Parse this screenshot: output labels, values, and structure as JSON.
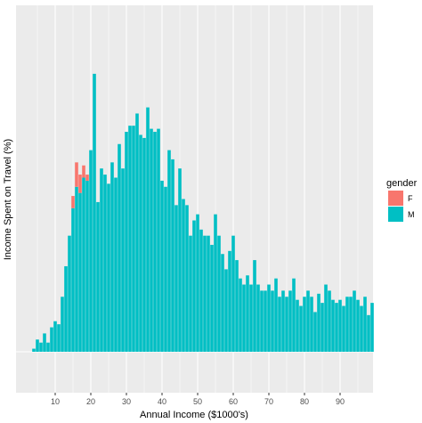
{
  "chart_data": {
    "type": "bar",
    "stacked": true,
    "xlabel": "Annual Income ($1000's)",
    "ylabel": "Income Spent on Travel (%)",
    "xlim": [
      0,
      99
    ],
    "ylim": [
      0,
      100
    ],
    "x_ticks": [
      10,
      20,
      30,
      40,
      50,
      60,
      70,
      80,
      90
    ],
    "y_ticks": [],
    "grid": true,
    "legend_position": "right",
    "legend": {
      "title": "gender",
      "entries": [
        {
          "label": "F",
          "color": "#F8766D"
        },
        {
          "label": "M",
          "color": "#00BFC4"
        }
      ]
    },
    "x": [
      1,
      2,
      3,
      4,
      5,
      6,
      7,
      8,
      9,
      10,
      11,
      12,
      13,
      14,
      15,
      16,
      17,
      18,
      19,
      20,
      21,
      22,
      23,
      24,
      25,
      26,
      27,
      28,
      29,
      30,
      31,
      32,
      33,
      34,
      35,
      36,
      37,
      38,
      39,
      40,
      41,
      42,
      43,
      44,
      45,
      46,
      47,
      48,
      49,
      50,
      51,
      52,
      53,
      54,
      55,
      56,
      57,
      58,
      59,
      60,
      61,
      62,
      63,
      64,
      65,
      66,
      67,
      68,
      69,
      70,
      71,
      72,
      73,
      74,
      75,
      76,
      77,
      78,
      79,
      80,
      81,
      82,
      83,
      84,
      85,
      86,
      87,
      88,
      89,
      90,
      91,
      92,
      93,
      94,
      95,
      96,
      97,
      98,
      99
    ],
    "series": [
      {
        "name": "M",
        "values": [
          0,
          0,
          0,
          1,
          4,
          3,
          6,
          3,
          8,
          10,
          9,
          18,
          28,
          38,
          47,
          54,
          52,
          57,
          56,
          66,
          91,
          49,
          60,
          58,
          55,
          62,
          57,
          68,
          60,
          72,
          74,
          74,
          78,
          71,
          70,
          80,
          73,
          72,
          73,
          56,
          54,
          66,
          63,
          48,
          60,
          50,
          48,
          38,
          43,
          45,
          40,
          38,
          38,
          35,
          45,
          38,
          32,
          27,
          33,
          38,
          30,
          24,
          22,
          25,
          22,
          30,
          22,
          20,
          20,
          22,
          20,
          24,
          18,
          20,
          18,
          20,
          24,
          17,
          15,
          18,
          20,
          18,
          13,
          19,
          16,
          22,
          20,
          17,
          16,
          17,
          15,
          18,
          18,
          20,
          17,
          15,
          18,
          12,
          16
        ]
      },
      {
        "name": "F",
        "values": [
          0,
          0,
          0,
          0,
          0,
          0,
          0,
          0,
          0,
          0,
          0,
          0,
          0,
          0,
          4,
          8,
          6,
          4,
          2,
          0,
          0,
          0,
          0,
          0,
          0,
          0,
          0,
          0,
          0,
          0,
          0,
          0,
          0,
          0,
          0,
          0,
          0,
          0,
          0,
          0,
          0,
          0,
          0,
          0,
          0,
          0,
          0,
          0,
          0,
          0,
          0,
          0,
          0,
          0,
          0,
          0,
          0,
          0,
          0,
          0,
          0,
          0,
          0,
          0,
          0,
          0,
          0,
          0,
          0,
          0,
          0,
          0,
          0,
          0,
          0,
          0,
          0,
          0,
          0,
          0,
          0,
          0,
          0,
          0,
          0,
          0,
          0,
          0,
          0,
          0,
          0,
          0,
          0,
          0,
          0,
          0,
          0,
          0,
          0
        ]
      }
    ]
  }
}
